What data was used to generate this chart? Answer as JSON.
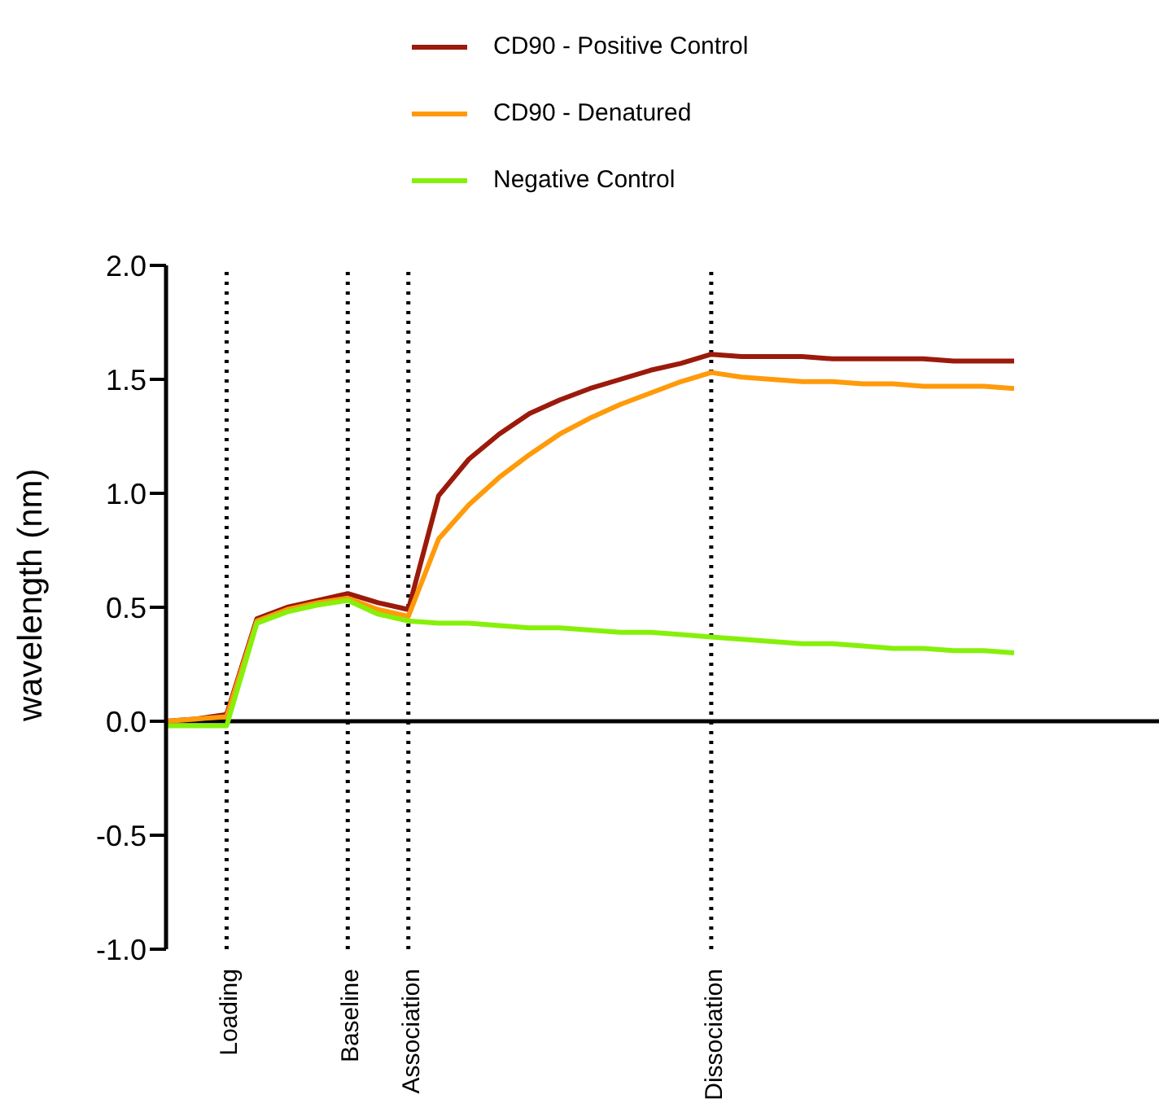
{
  "chart_data": {
    "type": "line",
    "ylabel": "wavelength (nm)",
    "legend": "top",
    "categories": [
      null,
      null,
      "Loading",
      null,
      null,
      null,
      "Baseline",
      null,
      "Association",
      null,
      null,
      null,
      null,
      null,
      null,
      null,
      null,
      null,
      "Dissociation",
      null,
      null,
      null,
      null,
      null,
      null,
      null,
      null,
      null,
      null
    ],
    "ylim": [
      -1,
      2
    ],
    "yticks": [
      {
        "value": -1,
        "label": "-1.0"
      },
      {
        "value": -0.5,
        "label": "-0.5"
      },
      {
        "value": 0,
        "label": "0.0"
      },
      {
        "value": 0.5,
        "label": "0.5"
      },
      {
        "value": 1,
        "label": "1.0"
      },
      {
        "value": 1.5,
        "label": "1.5"
      },
      {
        "value": 2,
        "label": "2.0"
      }
    ],
    "series": [
      {
        "name": "CD90 - Positive Control",
        "color": "#9b1a0b",
        "values": [
          0,
          0.01,
          0.03,
          0.45,
          0.5,
          0.53,
          0.56,
          0.52,
          0.49,
          0.99,
          1.15,
          1.26,
          1.35,
          1.41,
          1.46,
          1.5,
          1.54,
          1.57,
          1.61,
          1.6,
          1.6,
          1.6,
          1.59,
          1.59,
          1.59,
          1.59,
          1.58,
          1.58,
          1.58
        ]
      },
      {
        "name": "CD90 - Denatured",
        "color": "#ff9a0a",
        "values": [
          0,
          0.01,
          0.02,
          0.44,
          0.49,
          0.52,
          0.54,
          0.49,
          0.46,
          0.8,
          0.95,
          1.07,
          1.17,
          1.26,
          1.33,
          1.39,
          1.44,
          1.49,
          1.53,
          1.51,
          1.5,
          1.49,
          1.49,
          1.48,
          1.48,
          1.47,
          1.47,
          1.47,
          1.46
        ]
      },
      {
        "name": "Negative Control",
        "color": "#86f00a",
        "values": [
          -0.02,
          -0.02,
          -0.02,
          0.43,
          0.48,
          0.51,
          0.53,
          0.47,
          0.44,
          0.43,
          0.43,
          0.42,
          0.41,
          0.41,
          0.4,
          0.39,
          0.39,
          0.38,
          0.37,
          0.36,
          0.35,
          0.34,
          0.34,
          0.33,
          0.32,
          0.32,
          0.31,
          0.31,
          0.3
        ]
      }
    ],
    "ref_lines": [
      {
        "axis": "x",
        "value": "Loading",
        "color": "#000000",
        "line_style": "dotted"
      },
      {
        "axis": "x",
        "value": "Baseline",
        "color": "#000000",
        "line_style": "dotted"
      },
      {
        "axis": "x",
        "value": "Association",
        "color": "#000000",
        "line_style": "dotted"
      },
      {
        "axis": "x",
        "value": "Dissociation",
        "color": "#000000",
        "line_style": "dotted"
      }
    ]
  }
}
